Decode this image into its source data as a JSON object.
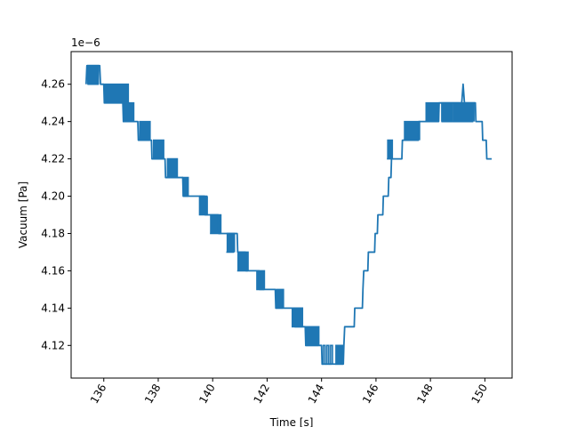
{
  "chart_data": {
    "type": "line",
    "title": "",
    "xlabel": "Time [s]",
    "ylabel": "Vacuum [Pa]",
    "y_offset_label": "1e−6",
    "xlim": [
      134.8,
      151.0
    ],
    "ylim": [
      4.1025,
      4.2775
    ],
    "x_ticks": [
      136,
      138,
      140,
      142,
      144,
      146,
      148,
      150
    ],
    "x_tick_labels": [
      "136",
      "138",
      "140",
      "142",
      "144",
      "146",
      "148",
      "150"
    ],
    "y_ticks": [
      4.12,
      4.14,
      4.16,
      4.18,
      4.2,
      4.22,
      4.24,
      4.26
    ],
    "y_tick_labels": [
      "4.12",
      "4.14",
      "4.16",
      "4.18",
      "4.20",
      "4.22",
      "4.24",
      "4.26"
    ],
    "x_tick_rotation": 60,
    "grid": false,
    "legend": "none",
    "series": [
      {
        "color": "#1f77b4",
        "noisy_segments": [
          [
            135.4,
            135.8,
            4.26,
            4.27,
            14
          ],
          [
            136.0,
            136.9,
            4.25,
            4.26,
            10
          ],
          [
            136.7,
            137.1,
            4.24,
            4.25,
            6
          ],
          [
            137.3,
            137.7,
            4.23,
            4.24,
            9
          ],
          [
            137.8,
            138.2,
            4.22,
            4.23,
            7
          ],
          [
            138.3,
            138.7,
            4.21,
            4.22,
            5
          ],
          [
            138.9,
            139.1,
            4.2,
            4.21,
            6
          ],
          [
            139.5,
            139.8,
            4.2,
            4.19,
            8
          ],
          [
            139.9,
            140.3,
            4.18,
            4.19,
            7
          ],
          [
            140.5,
            140.8,
            4.17,
            4.18,
            4
          ],
          [
            140.9,
            141.3,
            4.16,
            4.17,
            6
          ],
          [
            141.6,
            141.9,
            4.15,
            4.16,
            6
          ],
          [
            142.3,
            142.6,
            4.14,
            4.15,
            3
          ],
          [
            142.9,
            143.3,
            4.13,
            4.14,
            8
          ],
          [
            143.4,
            143.9,
            4.12,
            4.13,
            6
          ],
          [
            144.0,
            144.4,
            4.11,
            4.12,
            3
          ],
          [
            144.5,
            144.8,
            4.11,
            4.12,
            5
          ],
          [
            146.4,
            146.6,
            4.22,
            4.23,
            3
          ],
          [
            147.0,
            147.6,
            4.23,
            4.24,
            6
          ],
          [
            147.8,
            148.3,
            4.24,
            4.25,
            6
          ],
          [
            148.4,
            148.8,
            4.24,
            4.25,
            12
          ],
          [
            148.8,
            149.6,
            4.24,
            4.25,
            8
          ]
        ],
        "points": [
          [
            135.35,
            4.26
          ],
          [
            135.38,
            4.27
          ],
          [
            135.85,
            4.27
          ],
          [
            135.88,
            4.26
          ],
          [
            136.0,
            4.26
          ],
          [
            136.02,
            4.25
          ],
          [
            136.7,
            4.25
          ],
          [
            136.72,
            4.24
          ],
          [
            137.25,
            4.24
          ],
          [
            137.27,
            4.23
          ],
          [
            137.75,
            4.23
          ],
          [
            137.77,
            4.22
          ],
          [
            138.25,
            4.22
          ],
          [
            138.27,
            4.21
          ],
          [
            138.9,
            4.21
          ],
          [
            138.92,
            4.2
          ],
          [
            139.7,
            4.2
          ],
          [
            139.72,
            4.19
          ],
          [
            140.2,
            4.19
          ],
          [
            140.22,
            4.18
          ],
          [
            140.9,
            4.18
          ],
          [
            140.92,
            4.17
          ],
          [
            141.2,
            4.17
          ],
          [
            141.22,
            4.16
          ],
          [
            141.7,
            4.16
          ],
          [
            141.72,
            4.15
          ],
          [
            142.3,
            4.15
          ],
          [
            142.32,
            4.14
          ],
          [
            143.0,
            4.14
          ],
          [
            143.02,
            4.13
          ],
          [
            143.4,
            4.13
          ],
          [
            143.42,
            4.12
          ],
          [
            144.0,
            4.12
          ],
          [
            144.02,
            4.11
          ],
          [
            144.8,
            4.11
          ],
          [
            144.82,
            4.12
          ],
          [
            144.85,
            4.13
          ],
          [
            145.2,
            4.13
          ],
          [
            145.22,
            4.14
          ],
          [
            145.5,
            4.14
          ],
          [
            145.52,
            4.15
          ],
          [
            145.55,
            4.16
          ],
          [
            145.7,
            4.16
          ],
          [
            145.72,
            4.17
          ],
          [
            145.95,
            4.17
          ],
          [
            145.97,
            4.18
          ],
          [
            146.05,
            4.18
          ],
          [
            146.07,
            4.19
          ],
          [
            146.25,
            4.19
          ],
          [
            146.27,
            4.2
          ],
          [
            146.45,
            4.2
          ],
          [
            146.47,
            4.21
          ],
          [
            146.55,
            4.21
          ],
          [
            146.57,
            4.22
          ],
          [
            146.95,
            4.22
          ],
          [
            146.97,
            4.23
          ],
          [
            147.55,
            4.23
          ],
          [
            147.57,
            4.24
          ],
          [
            148.3,
            4.24
          ],
          [
            148.32,
            4.25
          ],
          [
            149.15,
            4.25
          ],
          [
            149.2,
            4.26
          ],
          [
            149.25,
            4.25
          ],
          [
            149.65,
            4.25
          ],
          [
            149.67,
            4.24
          ],
          [
            149.9,
            4.24
          ],
          [
            149.92,
            4.23
          ],
          [
            150.05,
            4.23
          ],
          [
            150.07,
            4.22
          ],
          [
            150.25,
            4.22
          ]
        ]
      }
    ]
  }
}
